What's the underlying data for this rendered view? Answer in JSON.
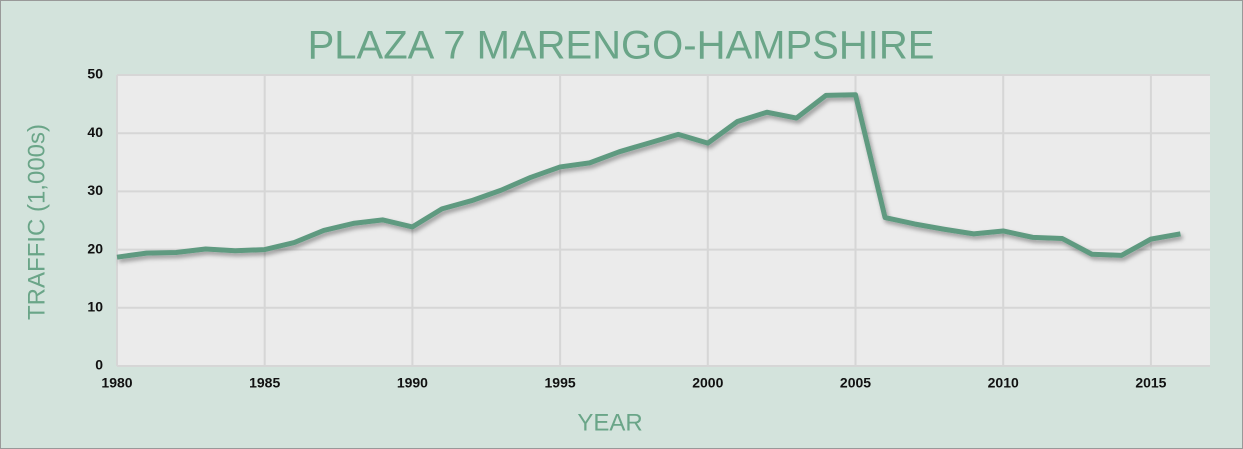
{
  "chart_data": {
    "type": "line",
    "title": "PLAZA 7 MARENGO-HAMPSHIRE",
    "x_label": "YEAR",
    "y_label": "TRAFFIC (1,000s)",
    "x": [
      1980,
      1981,
      1982,
      1983,
      1984,
      1985,
      1986,
      1987,
      1988,
      1989,
      1990,
      1991,
      1992,
      1993,
      1994,
      1995,
      1996,
      1997,
      1998,
      1999,
      2000,
      2001,
      2002,
      2003,
      2004,
      2005,
      2006,
      2007,
      2008,
      2009,
      2010,
      2011,
      2012,
      2013,
      2014,
      2015,
      2016
    ],
    "series": [
      {
        "name": "Traffic",
        "color": "#5f9a80",
        "values": [
          18.7,
          19.4,
          19.5,
          20.1,
          19.8,
          20.0,
          21.2,
          23.3,
          24.5,
          25.1,
          23.9,
          27.0,
          28.4,
          30.2,
          32.4,
          34.2,
          34.9,
          36.8,
          38.3,
          39.8,
          38.3,
          42.0,
          43.6,
          42.6,
          46.5,
          46.6,
          25.5,
          24.4,
          23.5,
          22.7,
          23.2,
          22.1,
          21.9,
          19.2,
          19.0,
          21.8,
          22.7
        ]
      }
    ],
    "xlim": [
      1980,
      2017
    ],
    "xticks": [
      1980,
      1985,
      1990,
      1995,
      2000,
      2005,
      2010,
      2015
    ],
    "ylim": [
      0,
      50
    ],
    "yticks": [
      0,
      10,
      20,
      30,
      40,
      50
    ],
    "grid": true
  }
}
